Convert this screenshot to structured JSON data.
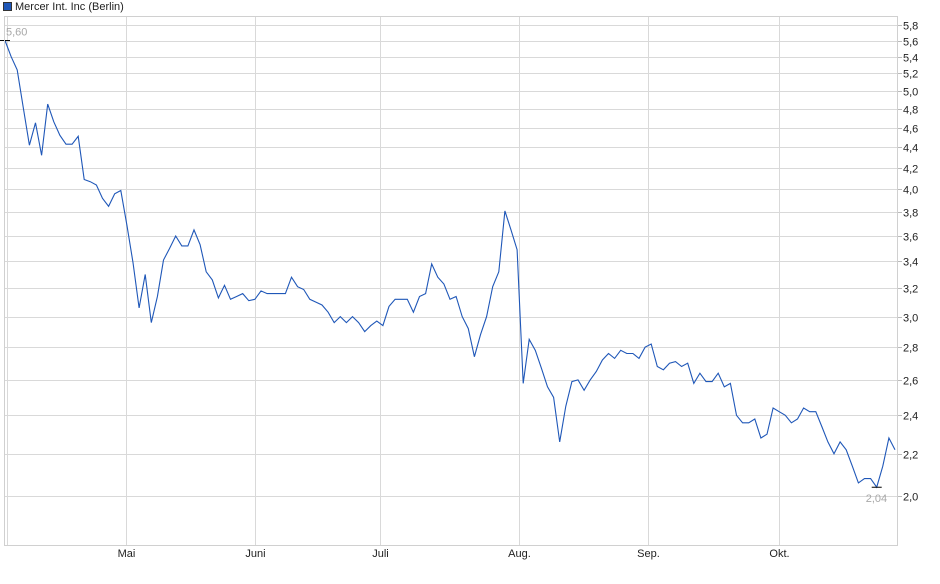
{
  "legend": {
    "label": "Mercer Int. Inc (Berlin)",
    "color": "#1f57b8"
  },
  "chart_data": {
    "type": "line",
    "title": "",
    "xlabel": "",
    "ylabel": "",
    "y_scale": "log",
    "ylim": [
      1.82,
      5.95
    ],
    "grid": true,
    "legend_position": "top-left",
    "y_axis_side": "right",
    "y_ticks": [
      "5,8",
      "5,6",
      "5,4",
      "5,2",
      "5,0",
      "4,8",
      "4,6",
      "4,4",
      "4,2",
      "4,0",
      "3,8",
      "3,6",
      "3,4",
      "3,2",
      "3,0",
      "2,8",
      "2,6",
      "2,4",
      "2,2",
      "2,0"
    ],
    "y_tick_values": [
      5.8,
      5.6,
      5.4,
      5.2,
      5.0,
      4.8,
      4.6,
      4.4,
      4.2,
      4.0,
      3.8,
      3.6,
      3.4,
      3.2,
      3.0,
      2.8,
      2.6,
      2.4,
      2.2,
      2.0
    ],
    "x_ticks": [
      {
        "label": "Mai",
        "day": 19.8
      },
      {
        "label": "Juni",
        "day": 41
      },
      {
        "label": "Juli",
        "day": 61.5
      },
      {
        "label": "Aug.",
        "day": 84.4
      },
      {
        "label": "Sep.",
        "day": 105.4
      },
      {
        "label": "Okt.",
        "day": 127
      }
    ],
    "series": [
      {
        "color": "#1f57b8",
        "values": [
          5.6,
          5.4,
          5.24,
          4.81,
          4.42,
          4.65,
          4.32,
          4.85,
          4.66,
          4.52,
          4.43,
          4.43,
          4.51,
          4.09,
          4.07,
          4.04,
          3.92,
          3.85,
          3.96,
          3.99,
          3.69,
          3.39,
          3.06,
          3.3,
          2.96,
          3.14,
          3.41,
          3.5,
          3.6,
          3.52,
          3.52,
          3.65,
          3.53,
          3.32,
          3.26,
          3.13,
          3.22,
          3.12,
          3.14,
          3.16,
          3.11,
          3.12,
          3.18,
          3.16,
          3.16,
          3.16,
          3.16,
          3.28,
          3.21,
          3.19,
          3.12,
          3.1,
          3.08,
          3.03,
          2.96,
          3.0,
          2.96,
          3.0,
          2.96,
          2.9,
          2.94,
          2.97,
          2.94,
          3.07,
          3.12,
          3.12,
          3.12,
          3.03,
          3.14,
          3.16,
          3.38,
          3.28,
          3.23,
          3.12,
          3.14,
          3.0,
          2.92,
          2.74,
          2.88,
          3.0,
          3.21,
          3.32,
          3.81,
          3.65,
          3.49,
          2.58,
          2.85,
          2.78,
          2.67,
          2.56,
          2.5,
          2.26,
          2.45,
          2.59,
          2.6,
          2.54,
          2.6,
          2.65,
          2.72,
          2.76,
          2.73,
          2.78,
          2.76,
          2.76,
          2.73,
          2.8,
          2.82,
          2.68,
          2.66,
          2.7,
          2.71,
          2.68,
          2.7,
          2.58,
          2.64,
          2.59,
          2.59,
          2.64,
          2.56,
          2.58,
          2.4,
          2.36,
          2.36,
          2.38,
          2.28,
          2.3,
          2.44,
          2.42,
          2.4,
          2.36,
          2.38,
          2.44,
          2.42,
          2.42,
          2.34,
          2.26,
          2.2,
          2.26,
          2.22,
          2.14,
          2.06,
          2.08,
          2.08,
          2.04,
          2.14,
          2.28,
          2.22
        ]
      }
    ],
    "annotations": {
      "high": {
        "label": "5,60",
        "value": 5.6
      },
      "low": {
        "label": "2,04",
        "value": 2.04
      }
    }
  }
}
